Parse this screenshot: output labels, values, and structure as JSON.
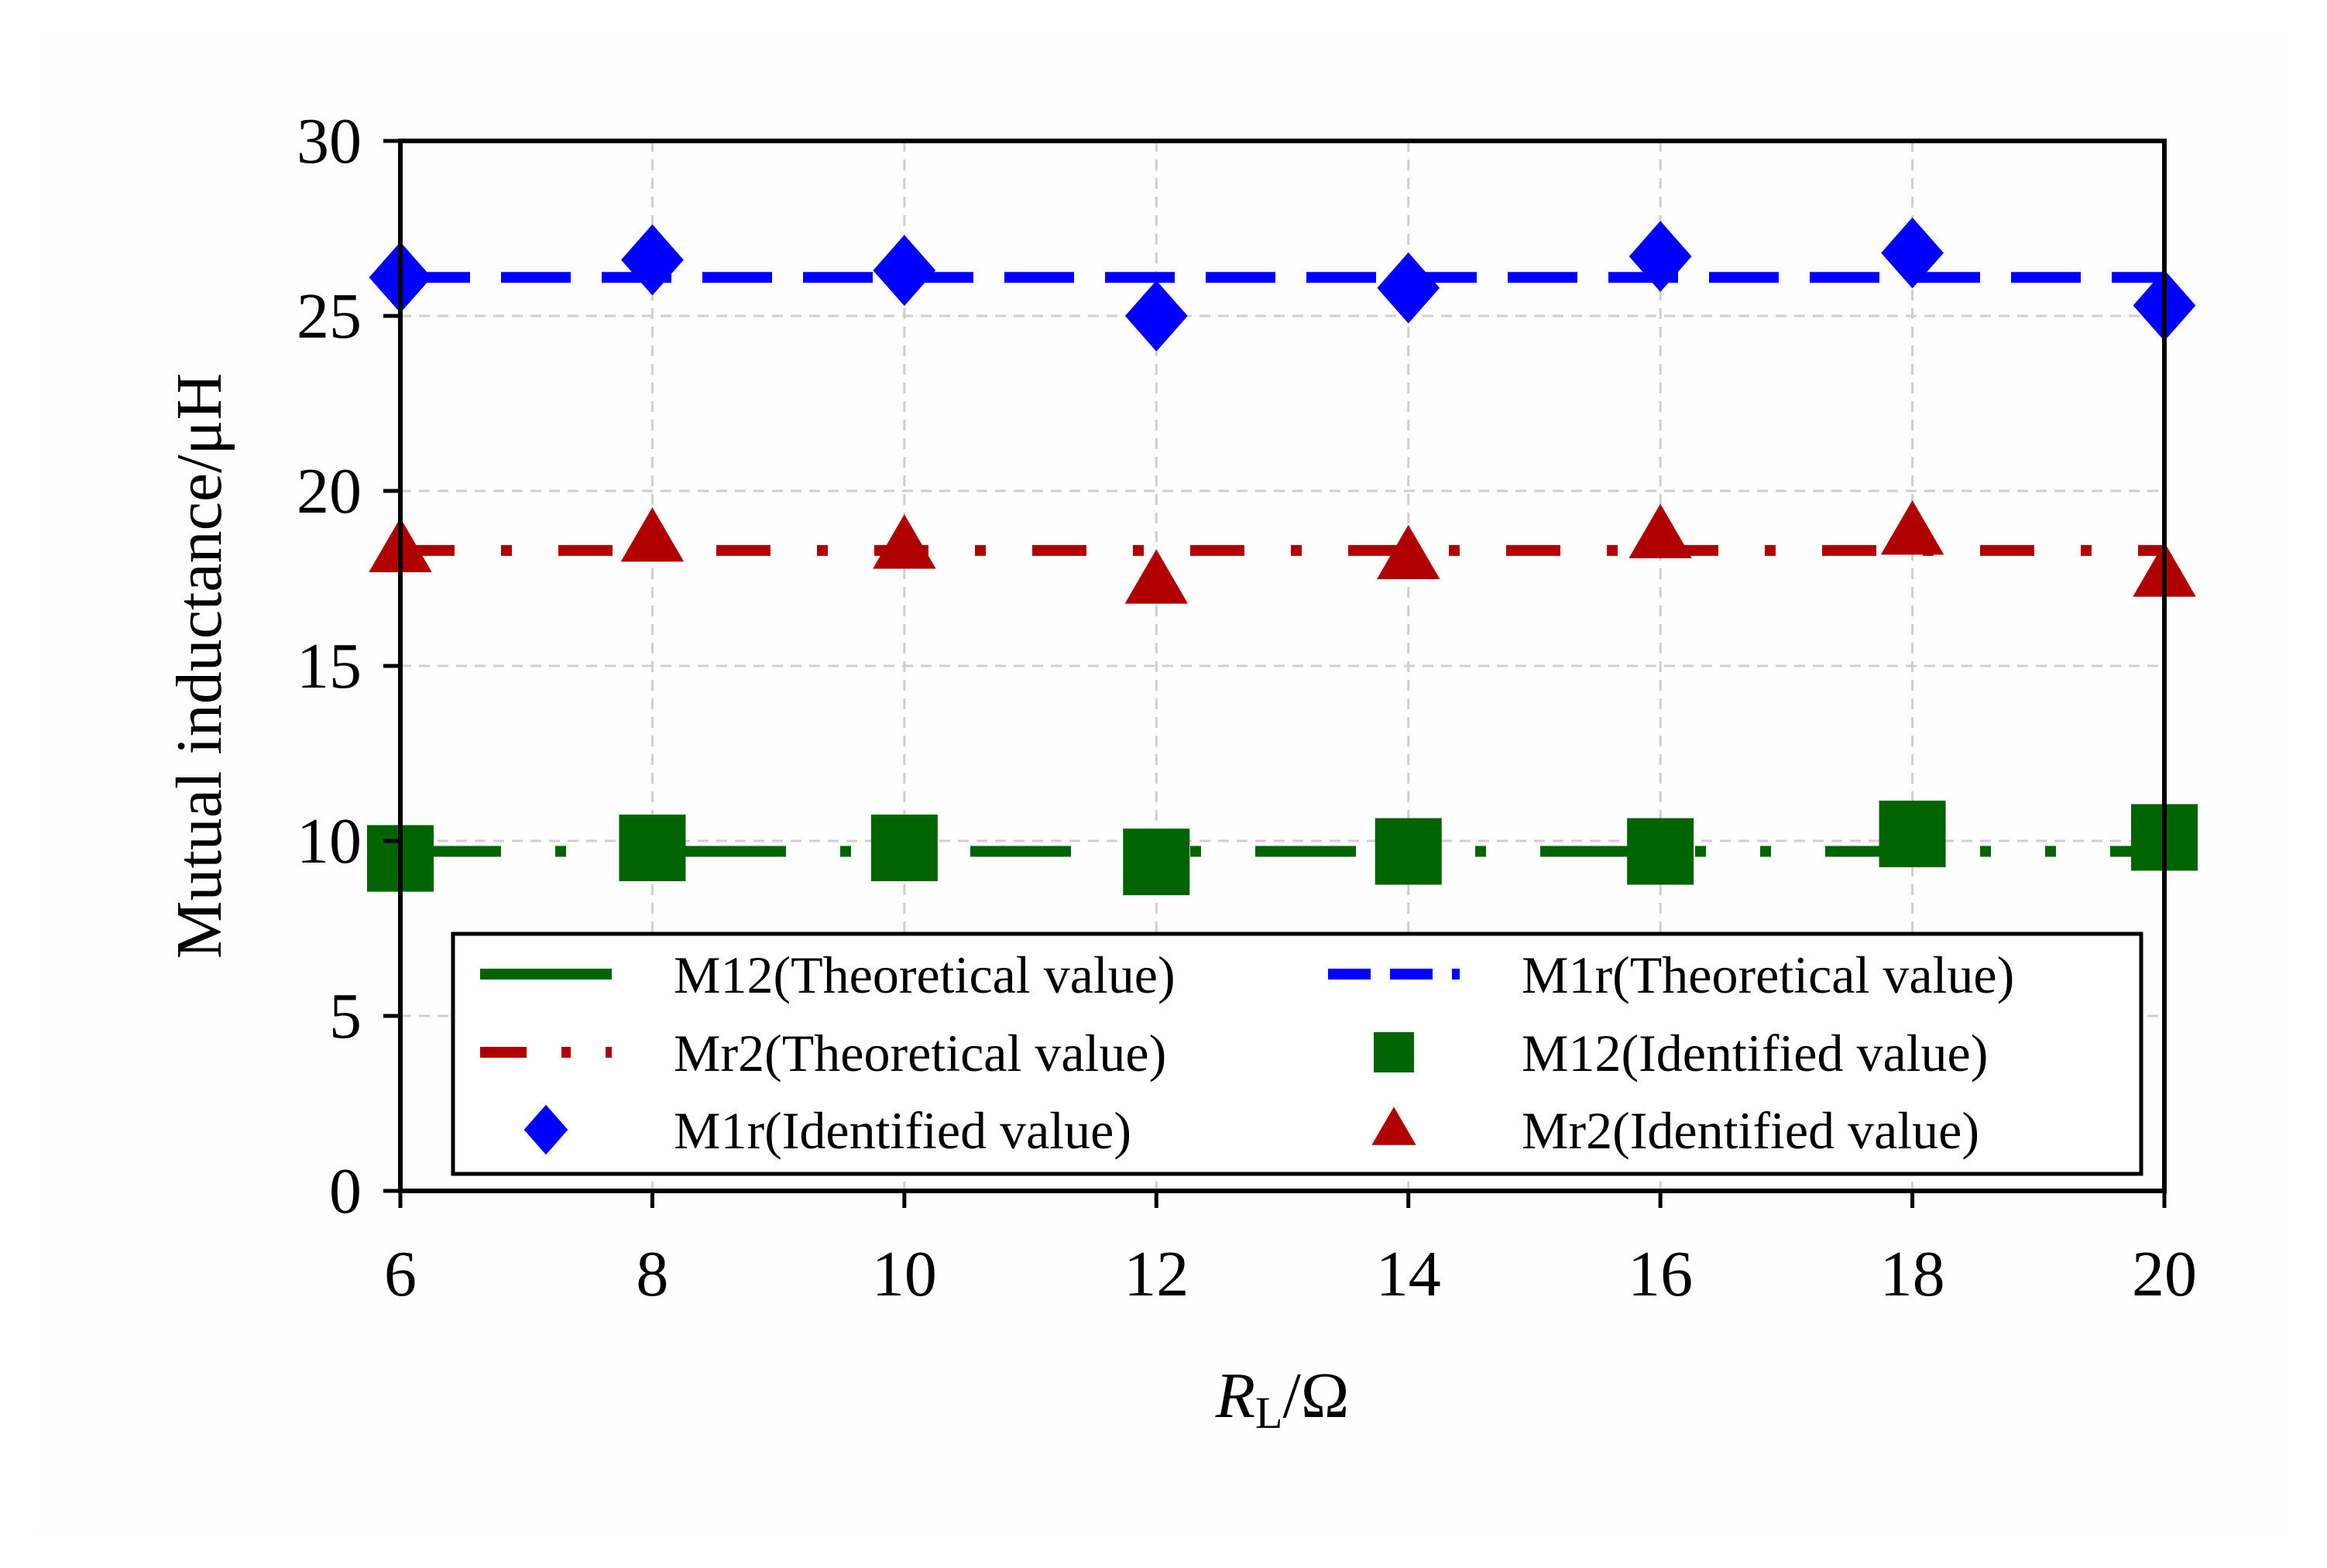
{
  "chart_data": {
    "type": "line",
    "xlabel_main": "R",
    "xlabel_sub": "L",
    "xlabel_unit": "/Ω",
    "ylabel": "Mutual inductance/μH",
    "xlim": [
      6,
      20
    ],
    "ylim": [
      0,
      30
    ],
    "xticks": [
      6,
      8,
      10,
      12,
      14,
      16,
      18,
      20
    ],
    "yticks": [
      0,
      5,
      10,
      15,
      20,
      25,
      30
    ],
    "grid": true,
    "legend_position": "bottom",
    "series": [
      {
        "name": "M12(Theoretical value)",
        "kind": "line",
        "style": "dash-dot-dot",
        "color": "#006400",
        "x": [
          6,
          20
        ],
        "y": [
          9.7,
          9.7
        ]
      },
      {
        "name": "M1r(Theoretical value)",
        "kind": "line",
        "style": "dashed",
        "color": "#0000ff",
        "x": [
          6,
          20
        ],
        "y": [
          26.1,
          26.1
        ]
      },
      {
        "name": "Mr2(Theoretical value)",
        "kind": "line",
        "style": "dash-dot",
        "color": "#b00000",
        "x": [
          6,
          20
        ],
        "y": [
          18.3,
          18.3
        ]
      },
      {
        "name": "M12(Identified value)",
        "kind": "scatter",
        "marker": "square",
        "color": "#006400",
        "x": [
          6,
          8,
          10,
          12,
          14,
          16,
          18,
          20
        ],
        "y": [
          9.5,
          9.8,
          9.8,
          9.4,
          9.7,
          9.7,
          10.2,
          10.1
        ]
      },
      {
        "name": "M1r(Identified value)",
        "kind": "scatter",
        "marker": "diamond",
        "color": "#0000ff",
        "x": [
          6,
          8,
          10,
          12,
          14,
          16,
          18,
          20
        ],
        "y": [
          26.1,
          26.6,
          26.3,
          25.0,
          25.8,
          26.7,
          26.8,
          25.3
        ]
      },
      {
        "name": "Mr2(Identified value)",
        "kind": "scatter",
        "marker": "triangle",
        "color": "#b00000",
        "x": [
          6,
          8,
          10,
          12,
          14,
          16,
          18,
          20
        ],
        "y": [
          18.3,
          18.6,
          18.4,
          17.4,
          18.1,
          18.7,
          18.8,
          17.6
        ]
      }
    ]
  }
}
